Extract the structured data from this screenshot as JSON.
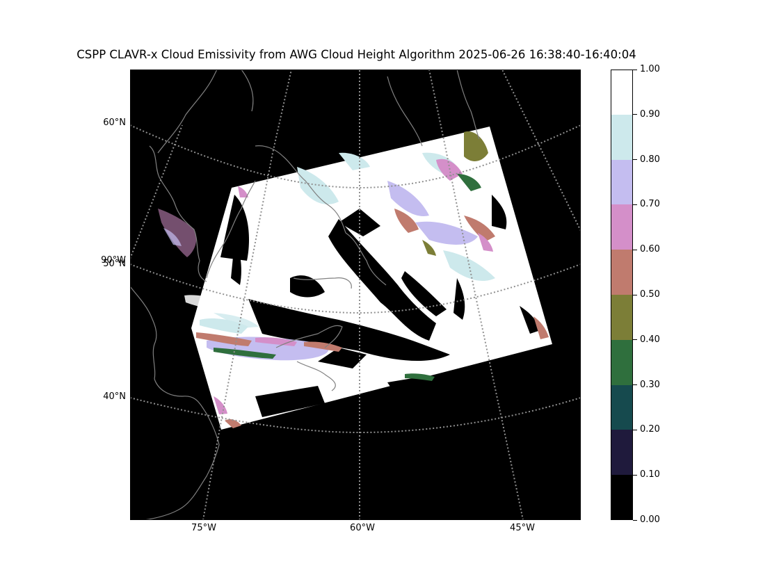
{
  "title": "CSPP CLAVR-x Cloud Emissivity from AWG Cloud Height Algorithm 2025-06-26 16:38:40-16:40:04",
  "map": {
    "lat_labels": [
      "60°N",
      "90°W",
      "50°N",
      "40°N"
    ],
    "lon_labels": [
      "75°W",
      "60°W",
      "45°W"
    ],
    "background_color": "#000000",
    "coastline_color": "#808080",
    "gridline_color": "#909090",
    "gridline_style": "dotted",
    "field": "cloud emissivity",
    "swath_dominant_value": "high (white, 0.90-1.00)"
  },
  "colorbar": {
    "min": 0.0,
    "max": 1.0,
    "tick_labels": [
      "1.00",
      "0.90",
      "0.80",
      "0.70",
      "0.60",
      "0.50",
      "0.40",
      "0.30",
      "0.20",
      "0.10",
      "0.00"
    ],
    "bins": [
      {
        "from": 0.9,
        "to": 1.0,
        "color": "#ffffff"
      },
      {
        "from": 0.8,
        "to": 0.9,
        "color": "#cde9ec"
      },
      {
        "from": 0.7,
        "to": 0.8,
        "color": "#c4bdf0"
      },
      {
        "from": 0.6,
        "to": 0.7,
        "color": "#d48fc9"
      },
      {
        "from": 0.5,
        "to": 0.6,
        "color": "#c07b6e"
      },
      {
        "from": 0.4,
        "to": 0.5,
        "color": "#7c7e37"
      },
      {
        "from": 0.3,
        "to": 0.4,
        "color": "#2f6f3d"
      },
      {
        "from": 0.2,
        "to": 0.3,
        "color": "#164a4e"
      },
      {
        "from": 0.1,
        "to": 0.2,
        "color": "#1f1a3c"
      },
      {
        "from": 0.0,
        "to": 0.1,
        "color": "#000000"
      }
    ]
  }
}
